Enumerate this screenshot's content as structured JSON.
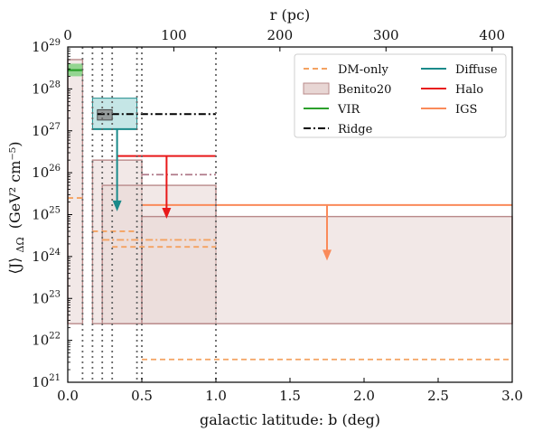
{
  "chart_data": {
    "type": "line",
    "xlabel": "galactic latitude: b (deg)",
    "ylabel_main": "⟨J⟩",
    "ylabel_sub": "ΔΩ",
    "ylabel_units": "(GeV² cm⁻⁵)",
    "top_axis_label": "r (pc)",
    "x_range": [
      0.0,
      3.0
    ],
    "y_log_range": [
      21,
      29
    ],
    "x_ticks": [
      "0.0",
      "0.5",
      "1.0",
      "1.5",
      "2.0",
      "2.5",
      "3.0"
    ],
    "x_tick_values": [
      0.0,
      0.5,
      1.0,
      1.5,
      2.0,
      2.5,
      3.0
    ],
    "top_ticks": [
      "0",
      "100",
      "200",
      "300",
      "400"
    ],
    "top_tick_b_values": [
      0.0,
      0.716,
      1.432,
      2.148,
      2.864
    ],
    "y_tick_exponents": [
      21,
      22,
      23,
      24,
      25,
      26,
      27,
      28,
      29
    ],
    "y_tick_base": "10",
    "vertical_boundaries_b": [
      0.1,
      0.167,
      0.233,
      0.3,
      0.467,
      0.5,
      1.0
    ],
    "legend": {
      "placement": "top-right",
      "entries": [
        {
          "label": "DM-only",
          "style": "dashed",
          "color": "#f4a261"
        },
        {
          "label": "Benito20",
          "style": "patch",
          "color": "#e8d6d4"
        },
        {
          "label": "VIR",
          "style": "solid",
          "color": "#2ca02c"
        },
        {
          "label": "Ridge",
          "style": "dashdot",
          "color": "#000000"
        },
        {
          "label": "Diffuse",
          "style": "solid",
          "color": "#1a8a8a"
        },
        {
          "label": "Halo",
          "style": "solid",
          "color": "#e8191a"
        },
        {
          "label": "IGS",
          "style": "solid",
          "color": "#fa8a5a"
        }
      ]
    },
    "benito20_bands": [
      {
        "b": [
          0.0,
          0.1
        ],
        "y_low": 2.5e+22,
        "y_high": 5e+28
      },
      {
        "b": [
          0.167,
          0.5
        ],
        "y_low": 2.5e+22,
        "y_high": 2e+26
      },
      {
        "b": [
          0.233,
          1.0
        ],
        "y_low": 2.5e+22,
        "y_high": 5e+25
      },
      {
        "b": [
          0.5,
          3.0
        ],
        "y_low": 2.5e+22,
        "y_high": 9e+24
      }
    ],
    "dm_only_segments": [
      {
        "b": [
          0.0,
          0.1
        ],
        "y": 2.5e+25,
        "style": "dashed"
      },
      {
        "b": [
          0.167,
          0.467
        ],
        "y": 4e+24,
        "style": "dashed"
      },
      {
        "b": [
          0.233,
          1.0
        ],
        "y": 2.5e+24,
        "style": "dashdot"
      },
      {
        "b": [
          0.3,
          1.0
        ],
        "y": 1.7e+24,
        "style": "dashed"
      },
      {
        "b": [
          0.5,
          3.0
        ],
        "y": 3.5e+21,
        "style": "dashed"
      }
    ],
    "vir_box": {
      "b": [
        0.0,
        0.1
      ],
      "y_low": 2e+28,
      "y_high": 4e+28,
      "y_line": 2.8e+28
    },
    "ridge": {
      "b": [
        0.2,
        1.0
      ],
      "y": 2.5e+27,
      "box_b": [
        0.2,
        0.3
      ],
      "box_y": [
        1.8e+27,
        3.2e+27
      ]
    },
    "diffuse": {
      "b": [
        0.167,
        0.467
      ],
      "y_low": 1.1e+27,
      "y_high": 6e+27,
      "y_line": 1.1e+27,
      "arrow_b": 0.333,
      "arrow_to": 1.2e+25
    },
    "halo": {
      "b": [
        0.333,
        1.0
      ],
      "y": 2.5e+26,
      "arrow_b": 0.667,
      "arrow_to": 8e+24,
      "dashdot_b": [
        0.5,
        1.0
      ],
      "dashdot_y": 9e+25
    },
    "igs": {
      "b": [
        0.5,
        3.0
      ],
      "y": 1.7e+25,
      "arrow_b": 1.75,
      "arrow_to": 8e+23
    }
  }
}
